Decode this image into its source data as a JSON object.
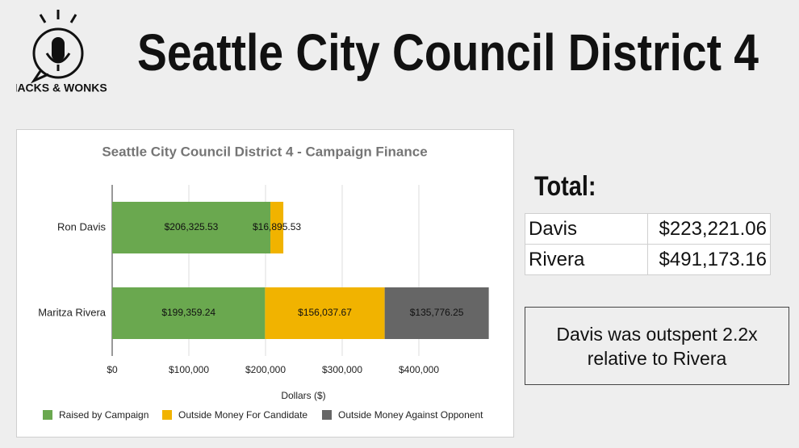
{
  "header": {
    "logo_text": "HACKS & WONKS",
    "title": "Seattle City Council District 4"
  },
  "chart_data": {
    "type": "bar",
    "orientation": "horizontal",
    "stacked": true,
    "title": "Seattle City Council District 4 - Campaign Finance",
    "x_label": "Dollars ($)",
    "categories": [
      "Ron Davis",
      "Maritza Rivera"
    ],
    "series": [
      {
        "name": "Raised by Campaign",
        "color": "#6aa84f",
        "values": [
          206325.53,
          199359.24
        ],
        "value_labels": [
          "$206,325.53",
          "$199,359.24"
        ]
      },
      {
        "name": "Outside Money For Candidate",
        "color": "#f1b300",
        "values": [
          16895.53,
          156037.67
        ],
        "value_labels": [
          "$16,895.53",
          "$156,037.67"
        ]
      },
      {
        "name": "Outside Money Against Opponent",
        "color": "#666666",
        "values": [
          null,
          135776.25
        ],
        "value_labels": [
          null,
          "$135,776.25"
        ]
      }
    ],
    "xlim": [
      0,
      500000
    ],
    "xticks": [
      {
        "value": 0,
        "label": "$0"
      },
      {
        "value": 100000,
        "label": "$100,000"
      },
      {
        "value": 200000,
        "label": "$200,000"
      },
      {
        "value": 300000,
        "label": "$300,000"
      },
      {
        "value": 400000,
        "label": "$400,000"
      }
    ],
    "grid": true,
    "legend": "bottom"
  },
  "totals": {
    "title": "Total:",
    "rows": [
      [
        "Davis",
        "$223,221.06"
      ],
      [
        "Rivera",
        "$491,173.16"
      ]
    ]
  },
  "note": "Davis was outspent 2.2x relative to Rivera"
}
